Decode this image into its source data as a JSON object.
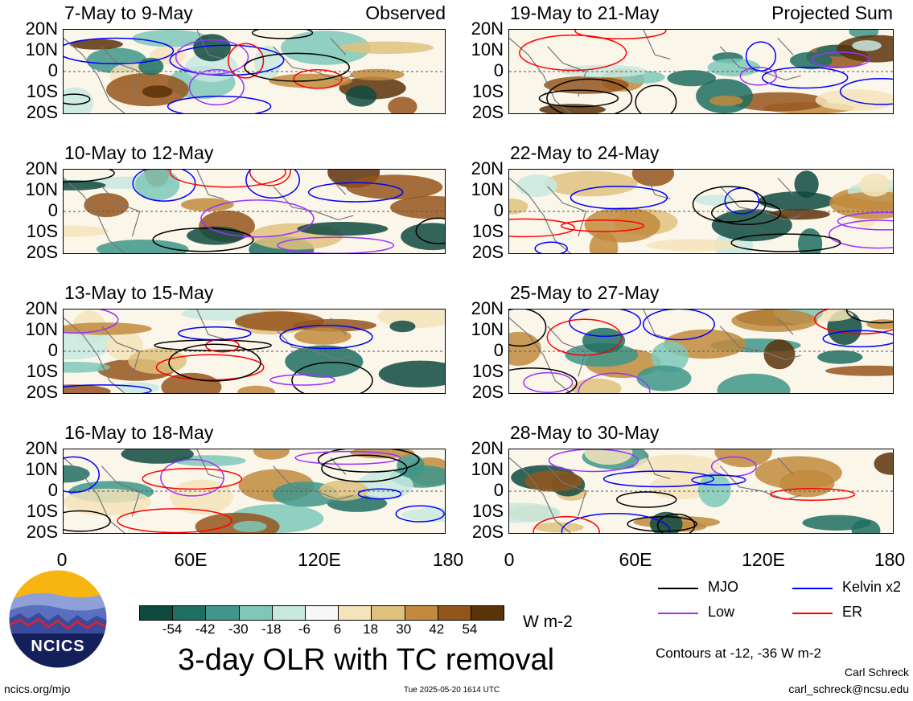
{
  "panels": [
    {
      "title": "7-May to 9-May",
      "tag": "Observed",
      "col": 0,
      "row": 0
    },
    {
      "title": "10-May to 12-May",
      "tag": "",
      "col": 0,
      "row": 1
    },
    {
      "title": "13-May to 15-May",
      "tag": "",
      "col": 0,
      "row": 2
    },
    {
      "title": "16-May to 18-May",
      "tag": "",
      "col": 0,
      "row": 3
    },
    {
      "title": "19-May to 21-May",
      "tag": "Projected Sum",
      "col": 1,
      "row": 0
    },
    {
      "title": "22-May to 24-May",
      "tag": "",
      "col": 1,
      "row": 1
    },
    {
      "title": "25-May to 27-May",
      "tag": "",
      "col": 1,
      "row": 2
    },
    {
      "title": "28-May to 30-May",
      "tag": "",
      "col": 1,
      "row": 3
    }
  ],
  "chart_data": {
    "type": "heatmap",
    "variable": "3-day OLR with TC removal",
    "y_ticks": [
      "20N",
      "10N",
      "0",
      "10S",
      "20S"
    ],
    "x_ticks": [
      "0",
      "60E",
      "120E",
      "180"
    ],
    "xlim": [
      0,
      180
    ],
    "ylim": [
      -20,
      20
    ],
    "colorbar": {
      "units": "W m-2",
      "ticks": [
        "-54",
        "-42",
        "-30",
        "-18",
        "-6",
        "6",
        "18",
        "30",
        "42",
        "54"
      ],
      "colors": [
        "#0f4a40",
        "#1f6e62",
        "#3e978a",
        "#7ec8b9",
        "#c7e9e0",
        "#f7f7f7",
        "#f4e4bb",
        "#dfc27e",
        "#c18a3d",
        "#94551c",
        "#5b3309"
      ]
    },
    "legend": [
      {
        "name": "MJO",
        "color": "#000000"
      },
      {
        "name": "Kelvin x2",
        "color": "#0000ff"
      },
      {
        "name": "Low",
        "color": "#9b30ff"
      },
      {
        "name": "ER",
        "color": "#ff0000"
      }
    ],
    "contour_note": "Contours at -12, -36 W m-2"
  },
  "footer": {
    "title": "3-day OLR with TC removal",
    "logo_text": "NCICS",
    "url": "ncics.org/mjo",
    "timestamp": "Tue 2025-05-20 1614 UTC",
    "author": "Carl Schreck",
    "email": "carl_schreck@ncsu.edu"
  }
}
